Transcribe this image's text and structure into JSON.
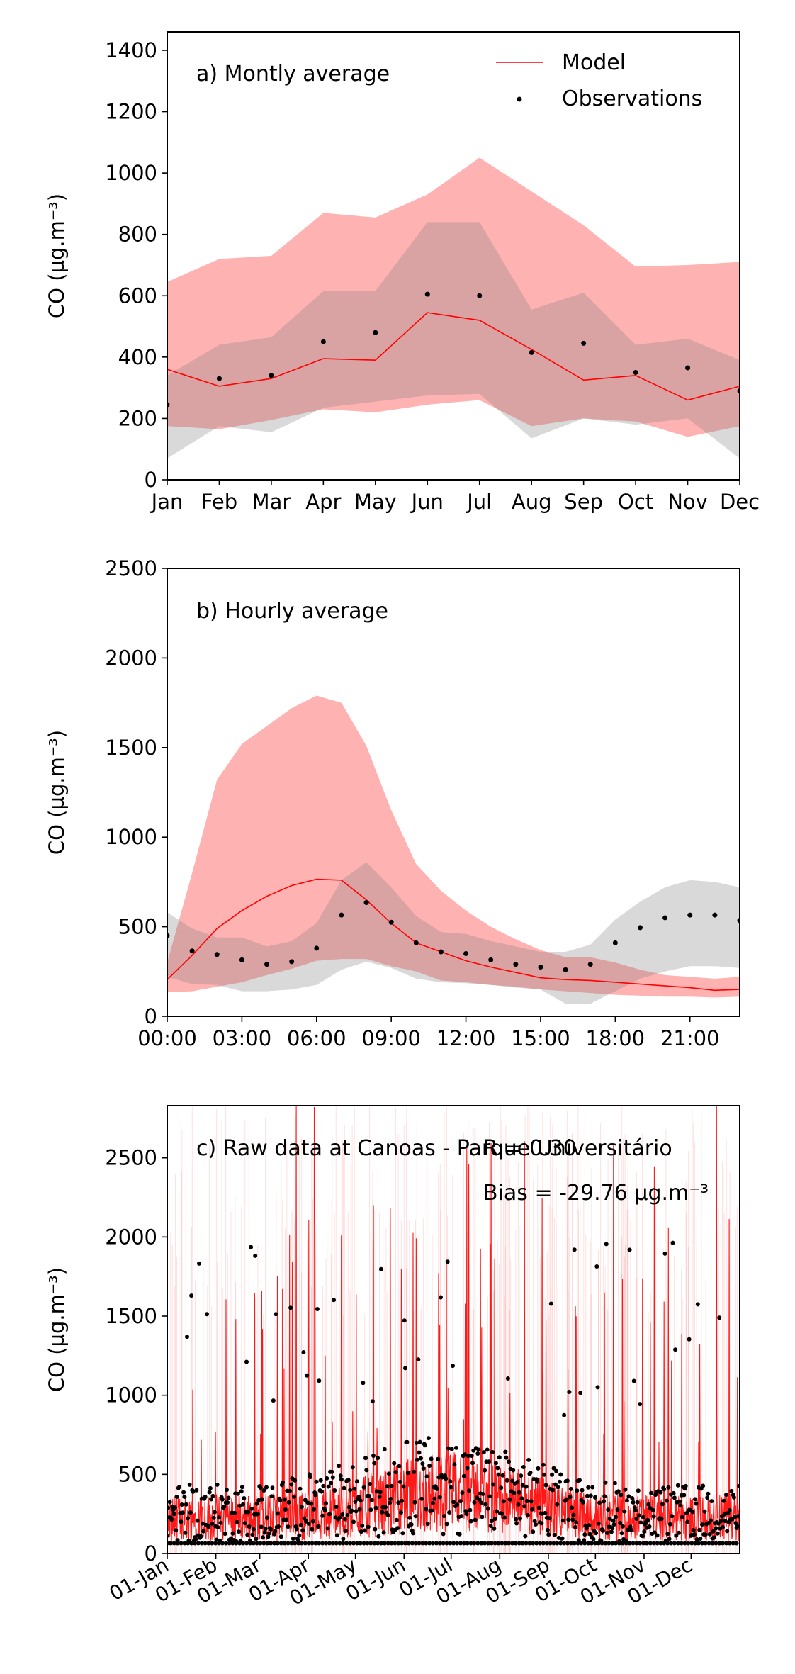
{
  "chart_data": [
    {
      "type": "line",
      "panel_label": "a) Montly average",
      "ylabel": "CO (μg.m⁻³)",
      "legend": {
        "placement": "top-right",
        "entries": [
          "Model",
          "Observations"
        ]
      },
      "categories": [
        "Jan",
        "Feb",
        "Mar",
        "Apr",
        "May",
        "Jun",
        "Jul",
        "Aug",
        "Sep",
        "Oct",
        "Nov",
        "Dec"
      ],
      "ylim": [
        0,
        1460
      ],
      "yticks": [
        0,
        200,
        400,
        600,
        800,
        1000,
        1200,
        1400
      ],
      "series": [
        {
          "name": "Model",
          "color": "#ff0000",
          "values": [
            360,
            305,
            330,
            395,
            390,
            545,
            520,
            425,
            325,
            340,
            260,
            305
          ]
        },
        {
          "name": "Observations",
          "color": "#000000",
          "values": [
            245,
            330,
            340,
            450,
            480,
            605,
            600,
            415,
            445,
            350,
            365,
            290
          ]
        }
      ],
      "bands": [
        {
          "color": "#ff0000",
          "opacity": 0.3,
          "lower": [
            175,
            165,
            195,
            230,
            220,
            245,
            260,
            175,
            200,
            190,
            140,
            175
          ],
          "upper": [
            645,
            720,
            730,
            870,
            855,
            930,
            1050,
            940,
            830,
            695,
            700,
            710
          ]
        },
        {
          "color": "#808080",
          "opacity": 0.3,
          "lower": [
            70,
            175,
            155,
            235,
            255,
            275,
            280,
            135,
            200,
            180,
            200,
            70
          ],
          "upper": [
            340,
            440,
            465,
            615,
            615,
            840,
            840,
            555,
            610,
            440,
            460,
            390
          ]
        }
      ]
    },
    {
      "type": "line",
      "panel_label": "b) Hourly average",
      "ylabel": "CO (μg.m⁻³)",
      "x": [
        0,
        1,
        2,
        3,
        4,
        5,
        6,
        7,
        8,
        9,
        10,
        11,
        12,
        13,
        14,
        15,
        16,
        17,
        18,
        19,
        20,
        21,
        22,
        23
      ],
      "xtick_labels": [
        "00:00",
        "03:00",
        "06:00",
        "09:00",
        "12:00",
        "15:00",
        "18:00",
        "21:00"
      ],
      "xtick_positions": [
        0,
        3,
        6,
        9,
        12,
        15,
        18,
        21
      ],
      "xlim": [
        0,
        23
      ],
      "ylim": [
        0,
        2500
      ],
      "yticks": [
        0,
        500,
        1000,
        1500,
        2000,
        2500
      ],
      "series": [
        {
          "name": "Model",
          "color": "#ff0000",
          "values": [
            205,
            340,
            490,
            590,
            670,
            730,
            765,
            760,
            650,
            520,
            410,
            360,
            310,
            275,
            245,
            215,
            205,
            200,
            190,
            180,
            170,
            160,
            145,
            150
          ]
        },
        {
          "name": "Observations",
          "color": "#000000",
          "values": [
            450,
            365,
            345,
            315,
            290,
            305,
            380,
            565,
            635,
            525,
            410,
            360,
            350,
            315,
            290,
            275,
            260,
            290,
            410,
            495,
            550,
            565,
            565,
            535
          ]
        }
      ],
      "bands": [
        {
          "color": "#ff0000",
          "opacity": 0.3,
          "lower": [
            135,
            140,
            165,
            190,
            230,
            265,
            310,
            320,
            320,
            280,
            250,
            200,
            190,
            175,
            165,
            150,
            140,
            130,
            120,
            115,
            110,
            110,
            105,
            110
          ],
          "upper": [
            300,
            800,
            1320,
            1520,
            1620,
            1720,
            1790,
            1750,
            1510,
            1150,
            850,
            700,
            590,
            500,
            430,
            370,
            330,
            330,
            300,
            260,
            230,
            220,
            210,
            220
          ]
        },
        {
          "color": "#808080",
          "opacity": 0.3,
          "lower": [
            220,
            180,
            175,
            140,
            140,
            150,
            175,
            260,
            305,
            270,
            210,
            190,
            185,
            175,
            160,
            150,
            70,
            70,
            140,
            210,
            250,
            280,
            280,
            270
          ],
          "upper": [
            580,
            490,
            440,
            440,
            390,
            420,
            520,
            760,
            860,
            720,
            560,
            470,
            460,
            420,
            390,
            360,
            360,
            400,
            540,
            640,
            720,
            760,
            750,
            720
          ]
        }
      ]
    },
    {
      "type": "scatter",
      "panel_label": "c) Raw data at Canoas - Parque Universitário",
      "annotations": [
        "R = 0.30",
        "Bias = -29.76 μg.m⁻³"
      ],
      "ylabel": "CO (μg.m⁻³)",
      "xtick_labels": [
        "01-Jan",
        "01-Feb",
        "01-Mar",
        "01-Apr",
        "01-May",
        "01-Jun",
        "01-Jul",
        "01-Aug",
        "01-Sep",
        "01-Oct",
        "01-Nov",
        "01-Dec"
      ],
      "xtick_days": [
        0,
        31,
        59,
        90,
        120,
        151,
        181,
        212,
        243,
        273,
        304,
        334
      ],
      "xlim_days": [
        0,
        365
      ],
      "ylim": [
        0,
        2830
      ],
      "yticks": [
        0,
        500,
        1000,
        1500,
        2000,
        2500
      ],
      "series": [
        {
          "name": "Model",
          "color": "#ff0000",
          "description_hourly": true
        },
        {
          "name": "Observations",
          "color": "#000000",
          "floor_value": 65
        }
      ]
    }
  ]
}
